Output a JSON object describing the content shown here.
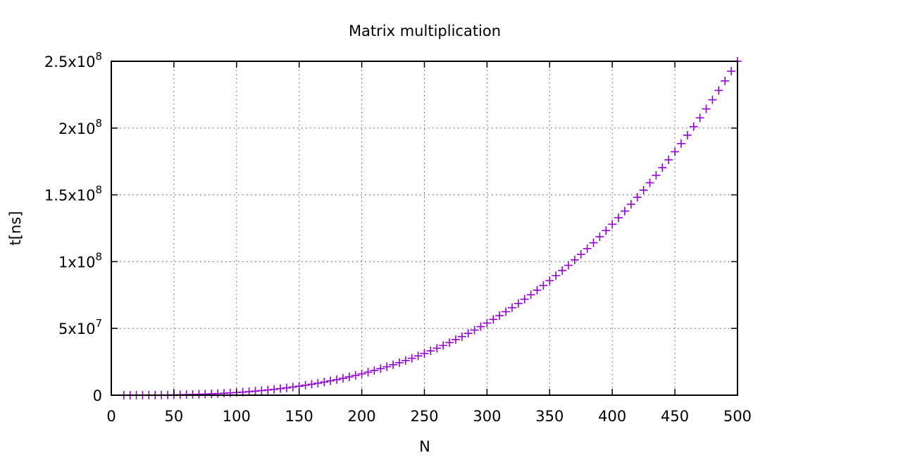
{
  "chart_data": {
    "type": "scatter",
    "title": "Matrix multiplication",
    "xlabel": "N",
    "ylabel": "t[ns]",
    "xlim": [
      0,
      500
    ],
    "ylim": [
      0,
      250000000
    ],
    "x_ticks": [
      0,
      50,
      100,
      150,
      200,
      250,
      300,
      350,
      400,
      450,
      500
    ],
    "y_ticks": [
      {
        "value": 0,
        "mantissa": "0",
        "exponent": ""
      },
      {
        "value": 50000000,
        "mantissa": "5x10",
        "exponent": "7"
      },
      {
        "value": 100000000,
        "mantissa": "1x10",
        "exponent": "8"
      },
      {
        "value": 150000000,
        "mantissa": "1.5x10",
        "exponent": "8"
      },
      {
        "value": 200000000,
        "mantissa": "2x10",
        "exponent": "8"
      },
      {
        "value": 250000000,
        "mantissa": "2.5x10",
        "exponent": "8"
      }
    ],
    "grid": true,
    "grid_style": "dotted",
    "marker": "+",
    "color": "#9400d3",
    "series": [
      {
        "x": [
          10,
          15,
          20,
          25,
          30,
          35,
          40,
          45,
          50,
          55,
          60,
          65,
          70,
          75,
          80,
          85,
          90,
          95,
          100,
          105,
          110,
          115,
          120,
          125,
          130,
          135,
          140,
          145,
          150,
          155,
          160,
          165,
          170,
          175,
          180,
          185,
          190,
          195,
          200,
          205,
          210,
          215,
          220,
          225,
          230,
          235,
          240,
          245,
          250,
          255,
          260,
          265,
          270,
          275,
          280,
          285,
          290,
          295,
          300,
          305,
          310,
          315,
          320,
          325,
          330,
          335,
          340,
          345,
          350,
          355,
          360,
          365,
          370,
          375,
          380,
          385,
          390,
          395,
          400,
          405,
          410,
          415,
          420,
          425,
          430,
          435,
          440,
          445,
          450,
          455,
          460,
          465,
          470,
          475,
          480,
          485,
          490,
          495,
          500
        ],
        "y": [
          2000,
          7000,
          16000,
          31000,
          54000,
          86000,
          128000,
          182000,
          250000,
          333000,
          432000,
          549000,
          686000,
          844000,
          1024000,
          1229000,
          1458000,
          1715000,
          2000000,
          2315000,
          2662000,
          3042000,
          3456000,
          3906000,
          4394000,
          4921000,
          5488000,
          6097000,
          6750000,
          7448000,
          8192000,
          8985000,
          9826000,
          10719000,
          11664000,
          12663000,
          13718000,
          14829000,
          16000000,
          17230000,
          18522000,
          19876000,
          21296000,
          22781000,
          24334000,
          25955000,
          27648000,
          29412000,
          31250000,
          33163000,
          35152000,
          37220000,
          39366000,
          41594000,
          43904000,
          46298000,
          48778000,
          51344000,
          54000000,
          56746000,
          59582000,
          62512000,
          65536000,
          68656000,
          71874000,
          75190000,
          78608000,
          82127000,
          85750000,
          89478000,
          93312000,
          97254000,
          101306000,
          105469000,
          109744000,
          114133000,
          118638000,
          123260000,
          128000000,
          132860000,
          137842000,
          142947000,
          148176000,
          153532000,
          159014000,
          164627000,
          170368000,
          176242000,
          182250000,
          188392000,
          194672000,
          201090000,
          207646000,
          214344000,
          221184000,
          228168000,
          235298000,
          242574000,
          250000000
        ]
      }
    ]
  }
}
